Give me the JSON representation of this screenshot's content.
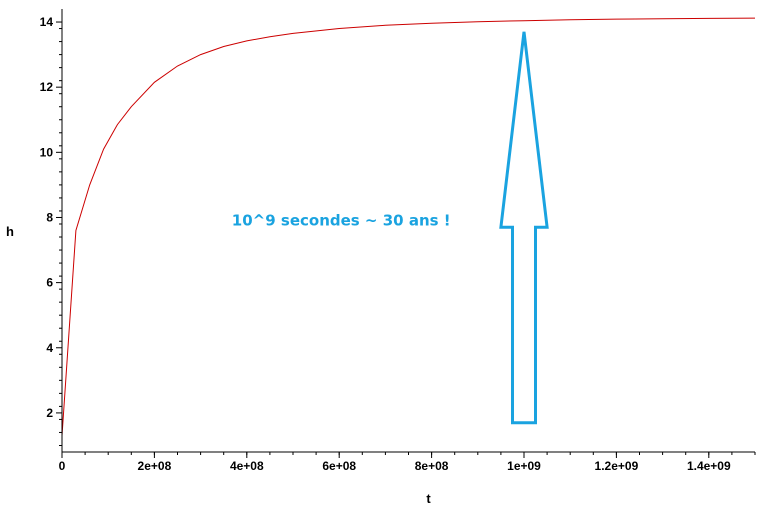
{
  "chart_data": {
    "type": "line",
    "xlabel": "t",
    "ylabel": "h",
    "xlim": [
      0,
      1500000000
    ],
    "ylim": [
      0.8,
      14.4
    ],
    "x_ticks": [
      {
        "value": 0,
        "label": "0"
      },
      {
        "value": 200000000,
        "label": "2e+08"
      },
      {
        "value": 400000000,
        "label": "4e+08"
      },
      {
        "value": 600000000,
        "label": "6e+08"
      },
      {
        "value": 800000000,
        "label": "8e+08"
      },
      {
        "value": 1000000000,
        "label": "1e+09"
      },
      {
        "value": 1200000000,
        "label": "1.2e+09"
      },
      {
        "value": 1400000000,
        "label": "1.4e+09"
      }
    ],
    "y_ticks": [
      {
        "value": 2,
        "label": "2"
      },
      {
        "value": 4,
        "label": "4"
      },
      {
        "value": 6,
        "label": "6"
      },
      {
        "value": 8,
        "label": "8"
      },
      {
        "value": 10,
        "label": "10"
      },
      {
        "value": 12,
        "label": "12"
      },
      {
        "value": 14,
        "label": "14"
      }
    ],
    "grid": false,
    "series": [
      {
        "color": "#cc0000",
        "x": [
          0,
          30000000,
          60000000,
          90000000,
          120000000,
          150000000,
          200000000,
          250000000,
          300000000,
          350000000,
          400000000,
          450000000,
          500000000,
          600000000,
          700000000,
          800000000,
          900000000,
          1000000000,
          1100000000,
          1200000000,
          1300000000,
          1400000000,
          1500000000
        ],
        "y": [
          1.3,
          7.6,
          9.0,
          10.1,
          10.85,
          11.4,
          12.15,
          12.65,
          13.0,
          13.25,
          13.42,
          13.55,
          13.65,
          13.8,
          13.9,
          13.96,
          14.01,
          14.04,
          14.07,
          14.09,
          14.1,
          14.11,
          14.12
        ]
      }
    ],
    "annotation": {
      "text": "10^9 secondes ~ 30 ans !",
      "color": "#1aa3e0",
      "anchor_x": 400000000,
      "anchor_y": 7.9
    },
    "arrow": {
      "color": "#1aa3e0",
      "x": 1000000000,
      "tail_y": 1.7,
      "head_base_y": 7.7,
      "tip_y": 13.7,
      "shaft_half_width": 25000000,
      "head_half_width": 50000000
    }
  }
}
